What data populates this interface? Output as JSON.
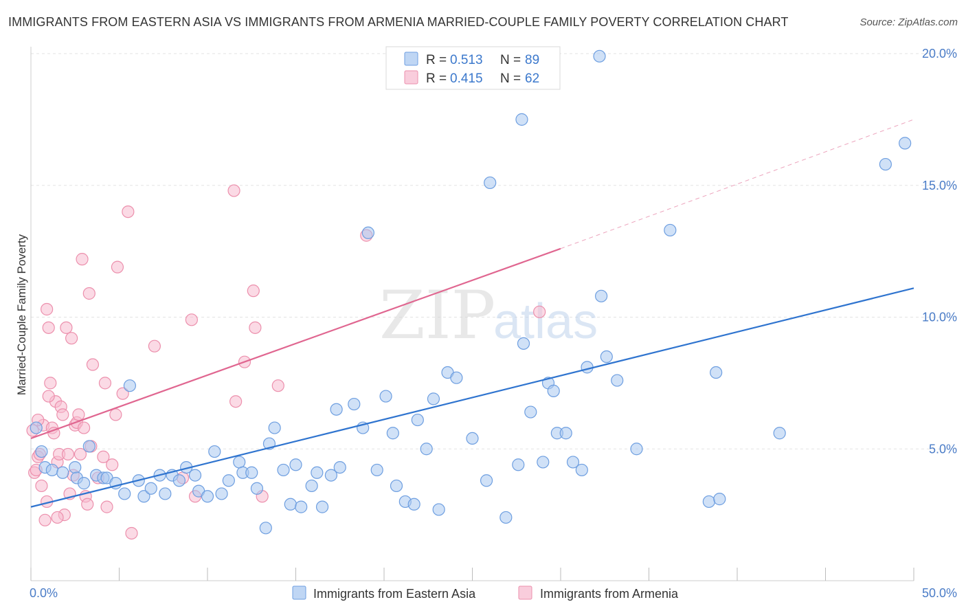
{
  "header": {
    "title": "IMMIGRANTS FROM EASTERN ASIA VS IMMIGRANTS FROM ARMENIA MARRIED-COUPLE FAMILY POVERTY CORRELATION CHART",
    "source": "Source: ZipAtlas.com"
  },
  "watermark": {
    "zip": "ZIP",
    "atlas": "atlas"
  },
  "legend": {
    "r_label": "R =",
    "n_label": "N =",
    "entries": [
      {
        "r": "0.513",
        "n": "89",
        "color": "#9ec2ee"
      },
      {
        "r": "0.415",
        "n": "62",
        "color": "#f5b5c8"
      }
    ]
  },
  "colors": {
    "blue_fill": "#a9c8f0",
    "blue_stroke": "#6d9ee0",
    "blue_line": "#2f74cf",
    "pink_fill": "#f7bcd0",
    "pink_stroke": "#ec8fac",
    "pink_line": "#e06690",
    "tick_text": "#4a7cc7"
  },
  "chart_data": {
    "type": "scatter",
    "title": "IMMIGRANTS FROM EASTERN ASIA VS IMMIGRANTS FROM ARMENIA MARRIED-COUPLE FAMILY POVERTY CORRELATION CHART",
    "xlabel": "",
    "ylabel": "Married-Couple Family Poverty",
    "xlim": [
      0,
      50
    ],
    "ylim": [
      0,
      20.5
    ],
    "x_ticks": [
      0,
      5,
      10,
      15,
      20,
      25,
      30,
      35,
      40,
      45,
      50
    ],
    "x_tick_labels": [
      "0.0%",
      "50.0%"
    ],
    "y_ticks": [
      5,
      10,
      15,
      20
    ],
    "y_tick_labels": [
      "5.0%",
      "10.0%",
      "15.0%",
      "20.0%"
    ],
    "grid": true,
    "legend_position": "top-center",
    "series": [
      {
        "name": "Immigrants from Eastern Asia",
        "color": "#a9c8f0",
        "r": 0.513,
        "n": 89,
        "trend": {
          "x": [
            0,
            50
          ],
          "y": [
            2.8,
            11.1
          ],
          "dashed_beyond": null
        },
        "points": [
          [
            0.3,
            5.8
          ],
          [
            0.6,
            4.9
          ],
          [
            0.8,
            4.3
          ],
          [
            1.2,
            4.2
          ],
          [
            1.8,
            4.1
          ],
          [
            2.5,
            4.3
          ],
          [
            2.6,
            3.9
          ],
          [
            3.0,
            3.7
          ],
          [
            3.3,
            5.1
          ],
          [
            3.7,
            4.0
          ],
          [
            4.1,
            3.9
          ],
          [
            4.3,
            3.9
          ],
          [
            4.8,
            3.7
          ],
          [
            5.3,
            3.3
          ],
          [
            5.6,
            7.4
          ],
          [
            6.1,
            3.8
          ],
          [
            6.4,
            3.2
          ],
          [
            6.8,
            3.5
          ],
          [
            7.3,
            4.0
          ],
          [
            7.6,
            3.3
          ],
          [
            8.0,
            4.0
          ],
          [
            8.4,
            3.8
          ],
          [
            8.8,
            4.3
          ],
          [
            9.3,
            4.0
          ],
          [
            9.5,
            3.4
          ],
          [
            10.0,
            3.2
          ],
          [
            10.4,
            4.9
          ],
          [
            10.8,
            3.3
          ],
          [
            11.2,
            3.8
          ],
          [
            11.8,
            4.5
          ],
          [
            12.0,
            4.1
          ],
          [
            12.5,
            4.1
          ],
          [
            12.8,
            3.5
          ],
          [
            13.3,
            2.0
          ],
          [
            13.5,
            5.2
          ],
          [
            13.8,
            5.8
          ],
          [
            14.3,
            4.2
          ],
          [
            14.7,
            2.9
          ],
          [
            15.0,
            4.4
          ],
          [
            15.3,
            2.8
          ],
          [
            15.9,
            3.6
          ],
          [
            16.2,
            4.1
          ],
          [
            16.5,
            2.8
          ],
          [
            17.0,
            4.0
          ],
          [
            17.3,
            6.5
          ],
          [
            17.5,
            4.3
          ],
          [
            18.3,
            6.7
          ],
          [
            18.8,
            5.8
          ],
          [
            19.1,
            13.2
          ],
          [
            19.6,
            4.2
          ],
          [
            20.1,
            7.0
          ],
          [
            20.5,
            5.6
          ],
          [
            20.7,
            3.6
          ],
          [
            21.2,
            3.0
          ],
          [
            21.7,
            2.9
          ],
          [
            21.9,
            6.1
          ],
          [
            22.4,
            5.0
          ],
          [
            22.8,
            6.9
          ],
          [
            23.1,
            2.7
          ],
          [
            23.6,
            7.9
          ],
          [
            24.1,
            7.7
          ],
          [
            25.0,
            5.4
          ],
          [
            25.8,
            3.8
          ],
          [
            26.0,
            15.1
          ],
          [
            26.9,
            2.4
          ],
          [
            27.6,
            4.4
          ],
          [
            27.8,
            17.5
          ],
          [
            27.9,
            9.0
          ],
          [
            28.3,
            6.4
          ],
          [
            29.0,
            4.5
          ],
          [
            29.3,
            7.5
          ],
          [
            29.6,
            7.2
          ],
          [
            29.8,
            5.6
          ],
          [
            30.3,
            5.6
          ],
          [
            30.7,
            4.5
          ],
          [
            31.2,
            4.2
          ],
          [
            31.5,
            8.1
          ],
          [
            32.2,
            19.9
          ],
          [
            32.3,
            10.8
          ],
          [
            32.6,
            8.5
          ],
          [
            33.2,
            7.6
          ],
          [
            34.3,
            5.0
          ],
          [
            36.2,
            13.3
          ],
          [
            38.8,
            7.9
          ],
          [
            38.4,
            3.0
          ],
          [
            39.0,
            3.1
          ],
          [
            42.4,
            5.6
          ],
          [
            48.4,
            15.8
          ],
          [
            49.5,
            16.6
          ]
        ]
      },
      {
        "name": "Immigrants from Armenia",
        "color": "#f7bcd0",
        "r": 0.415,
        "n": 62,
        "trend": {
          "x": [
            0,
            30
          ],
          "y": [
            5.4,
            12.6
          ],
          "dashed_to": [
            50,
            17.5
          ]
        },
        "points": [
          [
            0.1,
            5.7
          ],
          [
            0.2,
            4.1
          ],
          [
            0.3,
            4.2
          ],
          [
            0.4,
            4.7
          ],
          [
            0.5,
            4.8
          ],
          [
            0.6,
            3.6
          ],
          [
            0.7,
            5.9
          ],
          [
            0.8,
            2.3
          ],
          [
            0.9,
            10.3
          ],
          [
            1.0,
            9.6
          ],
          [
            1.1,
            7.5
          ],
          [
            1.2,
            5.8
          ],
          [
            1.3,
            5.6
          ],
          [
            1.4,
            6.8
          ],
          [
            1.5,
            4.5
          ],
          [
            1.6,
            4.8
          ],
          [
            1.7,
            6.6
          ],
          [
            1.8,
            6.3
          ],
          [
            1.9,
            2.5
          ],
          [
            2.0,
            9.6
          ],
          [
            2.1,
            4.8
          ],
          [
            2.2,
            3.3
          ],
          [
            2.3,
            9.2
          ],
          [
            2.5,
            5.9
          ],
          [
            2.6,
            6.0
          ],
          [
            2.7,
            6.3
          ],
          [
            2.8,
            4.8
          ],
          [
            2.9,
            12.2
          ],
          [
            3.0,
            5.8
          ],
          [
            3.1,
            3.2
          ],
          [
            3.2,
            2.9
          ],
          [
            3.3,
            10.9
          ],
          [
            3.5,
            8.2
          ],
          [
            4.1,
            4.7
          ],
          [
            4.2,
            7.5
          ],
          [
            4.3,
            2.8
          ],
          [
            4.6,
            4.4
          ],
          [
            4.8,
            6.3
          ],
          [
            4.9,
            11.9
          ],
          [
            5.2,
            7.1
          ],
          [
            5.5,
            14.0
          ],
          [
            5.7,
            1.8
          ],
          [
            7.0,
            8.9
          ],
          [
            8.6,
            3.9
          ],
          [
            9.1,
            9.9
          ],
          [
            9.3,
            3.2
          ],
          [
            11.5,
            14.8
          ],
          [
            11.6,
            6.8
          ],
          [
            12.1,
            8.3
          ],
          [
            12.6,
            11.0
          ],
          [
            12.7,
            9.6
          ],
          [
            13.1,
            3.2
          ],
          [
            14.0,
            7.4
          ],
          [
            19.0,
            13.1
          ],
          [
            28.8,
            10.2
          ],
          [
            1.5,
            2.4
          ],
          [
            0.9,
            3.0
          ],
          [
            2.4,
            4.0
          ],
          [
            3.4,
            5.1
          ],
          [
            0.4,
            6.1
          ],
          [
            1.0,
            7.0
          ],
          [
            3.8,
            3.9
          ]
        ]
      }
    ]
  }
}
